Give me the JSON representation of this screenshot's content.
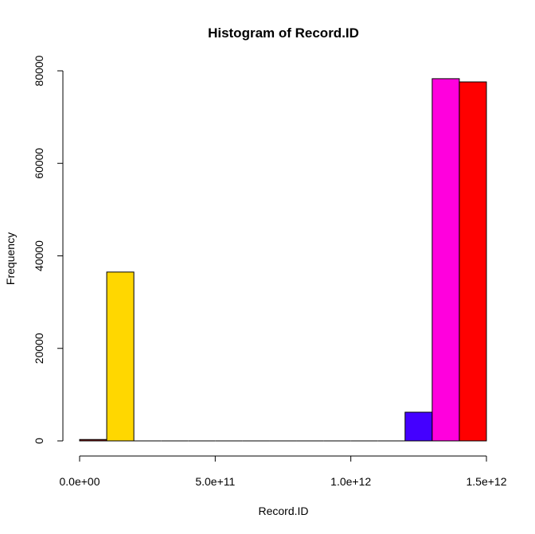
{
  "chart_data": {
    "type": "bar",
    "title": "Histogram of Record.ID",
    "xlabel": "Record.ID",
    "ylabel": "Frequency",
    "xlim": [
      0,
      1500000000000
    ],
    "ylim": [
      0,
      80000
    ],
    "x_ticks": [
      {
        "value": 0,
        "label": "0.0e+00"
      },
      {
        "value": 500000000000,
        "label": "5.0e+11"
      },
      {
        "value": 1000000000000,
        "label": "1.0e+12"
      },
      {
        "value": 1500000000000,
        "label": "1.5e+12"
      }
    ],
    "y_ticks": [
      {
        "value": 0,
        "label": "0"
      },
      {
        "value": 20000,
        "label": "20000"
      },
      {
        "value": 40000,
        "label": "40000"
      },
      {
        "value": 60000,
        "label": "60000"
      },
      {
        "value": 80000,
        "label": "80000"
      }
    ],
    "bins": [
      {
        "start": 0,
        "end": 100000000000,
        "count": 300,
        "color": "#8B1A1A"
      },
      {
        "start": 100000000000,
        "end": 200000000000,
        "count": 36500,
        "color": "#FFD700"
      },
      {
        "start": 200000000000,
        "end": 300000000000,
        "count": 0,
        "color": "#FFFFFF"
      },
      {
        "start": 300000000000,
        "end": 400000000000,
        "count": 0,
        "color": "#FFFFFF"
      },
      {
        "start": 400000000000,
        "end": 500000000000,
        "count": 0,
        "color": "#FFFFFF"
      },
      {
        "start": 500000000000,
        "end": 600000000000,
        "count": 0,
        "color": "#FFFFFF"
      },
      {
        "start": 600000000000,
        "end": 700000000000,
        "count": 0,
        "color": "#FFFFFF"
      },
      {
        "start": 700000000000,
        "end": 800000000000,
        "count": 0,
        "color": "#FFFFFF"
      },
      {
        "start": 800000000000,
        "end": 900000000000,
        "count": 0,
        "color": "#FFFFFF"
      },
      {
        "start": 900000000000,
        "end": 1000000000000,
        "count": 0,
        "color": "#FFFFFF"
      },
      {
        "start": 1000000000000,
        "end": 1100000000000,
        "count": 0,
        "color": "#FFFFFF"
      },
      {
        "start": 1100000000000,
        "end": 1200000000000,
        "count": 0,
        "color": "#FFFFFF"
      },
      {
        "start": 1200000000000,
        "end": 1300000000000,
        "count": 6200,
        "color": "#4400FF"
      },
      {
        "start": 1300000000000,
        "end": 1400000000000,
        "count": 78300,
        "color": "#FF00DD"
      },
      {
        "start": 1400000000000,
        "end": 1500000000000,
        "count": 77600,
        "color": "#FF0000"
      }
    ]
  }
}
